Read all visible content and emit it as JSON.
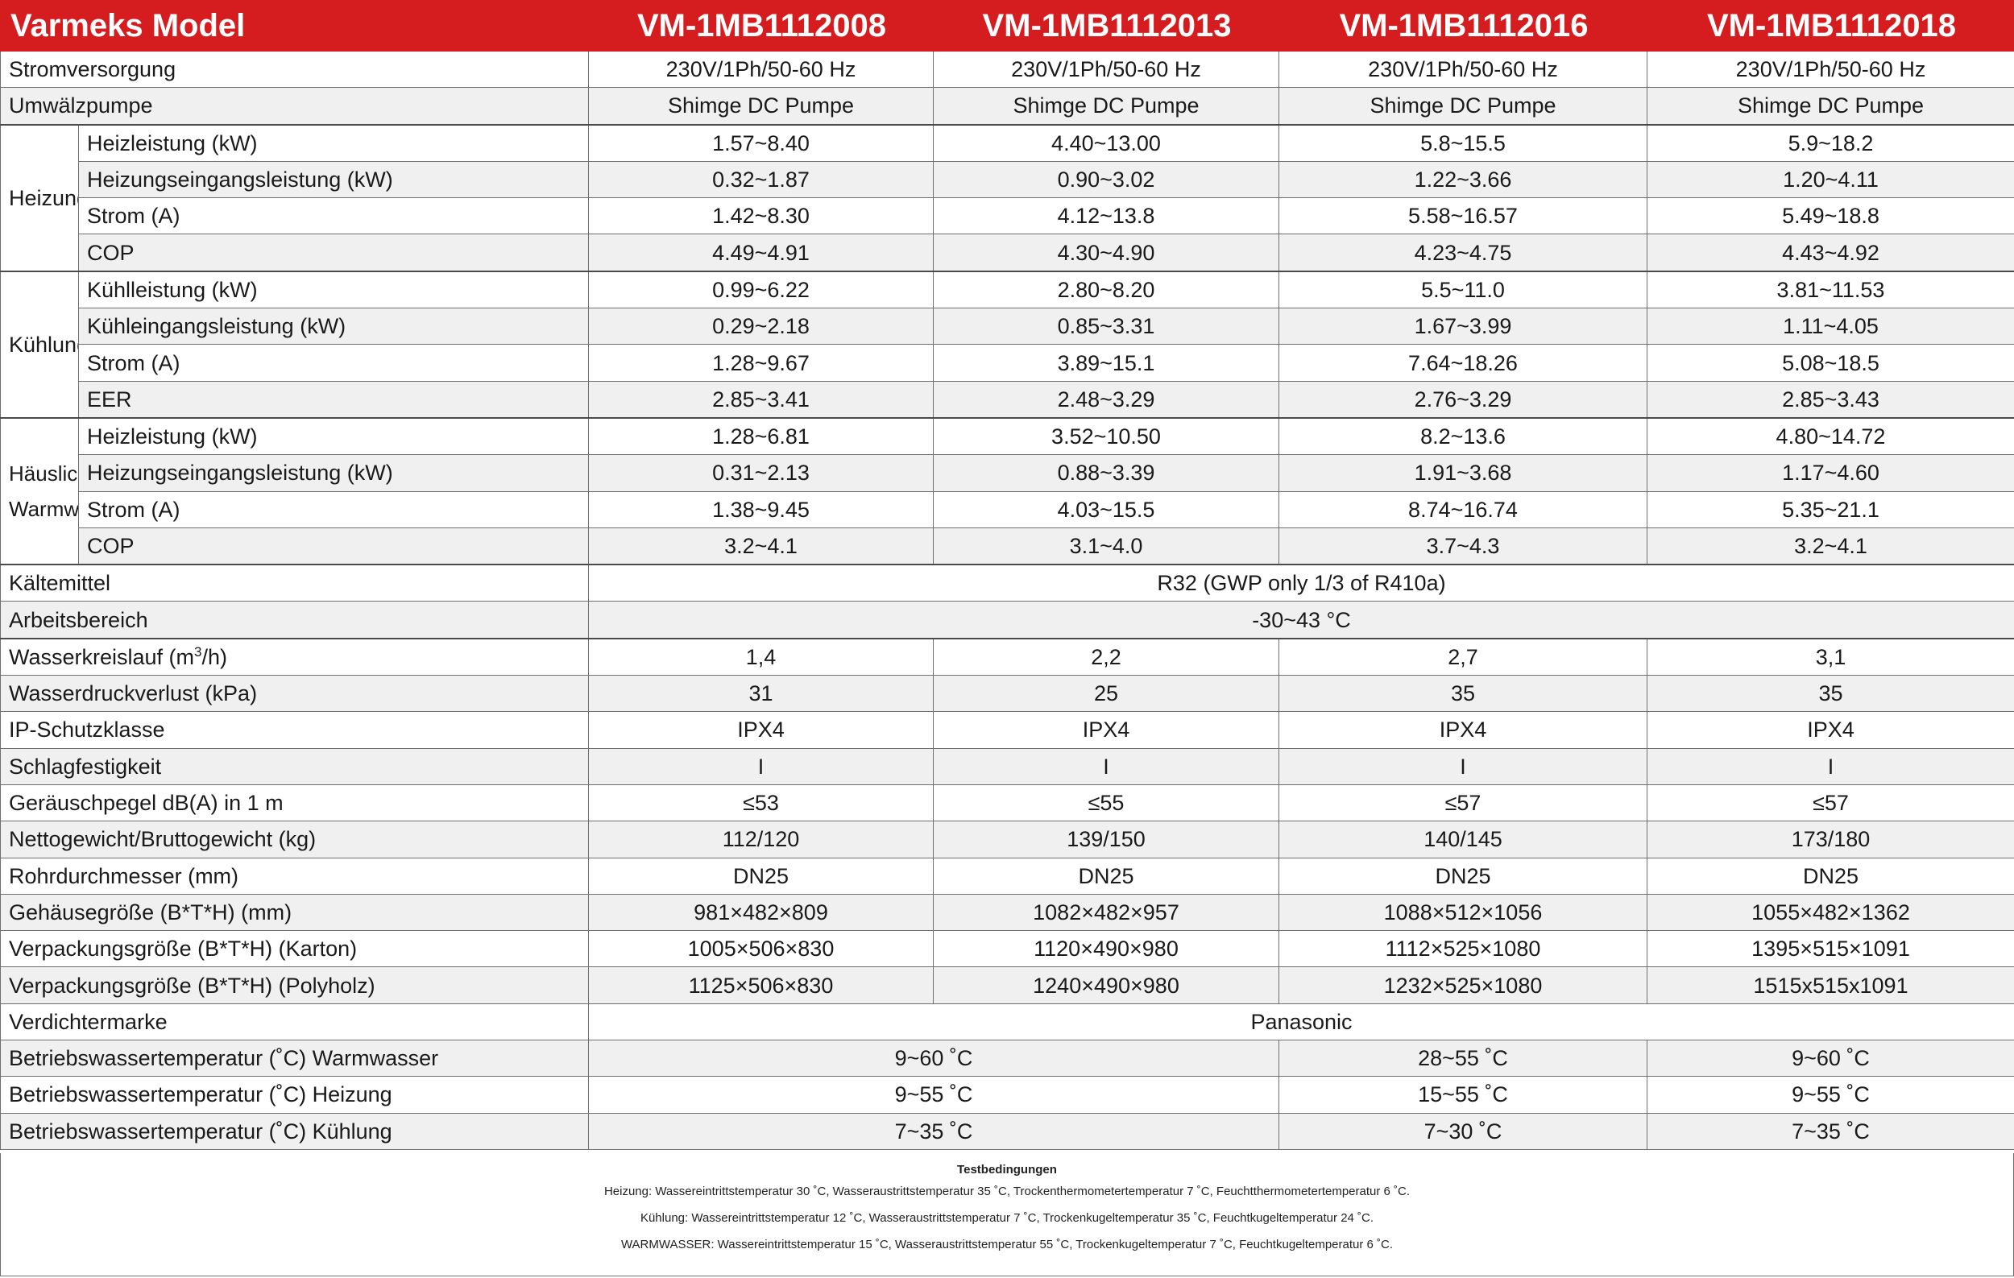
{
  "header": {
    "title": "Varmeks Model",
    "models": [
      "VM-1MB1112008",
      "VM-1MB1112013",
      "VM-1MB1112016",
      "VM-1MB1112018"
    ]
  },
  "rows": {
    "power": {
      "label": "Stromversorgung",
      "values": [
        "230V/1Ph/50-60 Hz",
        "230V/1Ph/50-60 Hz",
        "230V/1Ph/50-60 Hz",
        "230V/1Ph/50-60 Hz"
      ]
    },
    "pump": {
      "label": "Umwälzpumpe",
      "values": [
        "Shimge DC Pumpe",
        "Shimge DC Pumpe",
        "Shimge DC Pumpe",
        "Shimge DC Pumpe"
      ]
    },
    "heating": {
      "group": "Heizung",
      "items": [
        {
          "label": "Heizleistung (kW)",
          "values": [
            "1.57~8.40",
            "4.40~13.00",
            "5.8~15.5",
            "5.9~18.2"
          ]
        },
        {
          "label": "Heizungseingangsleistung (kW)",
          "values": [
            "0.32~1.87",
            "0.90~3.02",
            "1.22~3.66",
            "1.20~4.11"
          ]
        },
        {
          "label": "Strom (A)",
          "values": [
            "1.42~8.30",
            "4.12~13.8",
            "5.58~16.57",
            "5.49~18.8"
          ]
        },
        {
          "label": "COP",
          "values": [
            "4.49~4.91",
            "4.30~4.90",
            "4.23~4.75",
            "4.43~4.92"
          ]
        }
      ]
    },
    "cooling": {
      "group": "Kühlung",
      "items": [
        {
          "label": "Kühlleistung (kW)",
          "values": [
            "0.99~6.22",
            "2.80~8.20",
            "5.5~11.0",
            "3.81~11.53"
          ]
        },
        {
          "label": "Kühleingangsleistung (kW)",
          "values": [
            "0.29~2.18",
            "0.85~3.31",
            "1.67~3.99",
            "1.11~4.05"
          ]
        },
        {
          "label": "Strom (A)",
          "values": [
            "1.28~9.67",
            "3.89~15.1",
            "7.64~18.26",
            "5.08~18.5"
          ]
        },
        {
          "label": "EER",
          "values": [
            "2.85~3.41",
            "2.48~3.29",
            "2.76~3.29",
            "2.85~3.43"
          ]
        }
      ]
    },
    "dhw": {
      "group_line1": "Häusliches",
      "group_line2": "Warmwasser",
      "items": [
        {
          "label": "Heizleistung (kW)",
          "values": [
            "1.28~6.81",
            "3.52~10.50",
            "8.2~13.6",
            "4.80~14.72"
          ]
        },
        {
          "label": "Heizungseingangsleistung (kW)",
          "values": [
            "0.31~2.13",
            "0.88~3.39",
            "1.91~3.68",
            "1.17~4.60"
          ]
        },
        {
          "label": "Strom (A)",
          "values": [
            "1.38~9.45",
            "4.03~15.5",
            "8.74~16.74",
            "5.35~21.1"
          ]
        },
        {
          "label": "COP",
          "values": [
            "3.2~4.1",
            "3.1~4.0",
            "3.7~4.3",
            "3.2~4.1"
          ]
        }
      ]
    },
    "refrigerant": {
      "label": "Kältemittel",
      "value": "R32 (GWP only 1/3 of R410a)"
    },
    "range": {
      "label": "Arbeitsbereich",
      "value": "-30~43 °C"
    },
    "waterflow": {
      "label_pre": "Wasserkreislauf (m",
      "label_sup": "3",
      "label_post": "/h)",
      "values": [
        "1,4",
        "2,2",
        "2,7",
        "3,1"
      ]
    },
    "pressure_loss": {
      "label": "Wasserdruckverlust (kPa)",
      "values": [
        "31",
        "25",
        "35",
        "35"
      ]
    },
    "ip": {
      "label": "IP-Schutzklasse",
      "values": [
        "IPX4",
        "IPX4",
        "IPX4",
        "IPX4"
      ]
    },
    "impact": {
      "label": "Schlagfestigkeit",
      "values": [
        "I",
        "I",
        "I",
        "I"
      ]
    },
    "noise": {
      "label": "Geräuschpegel dB(A) in 1 m",
      "values": [
        "≤53",
        "≤55",
        "≤57",
        "≤57"
      ]
    },
    "weight": {
      "label": "Nettogewicht/Bruttogewicht (kg)",
      "values": [
        "112/120",
        "139/150",
        "140/145",
        "173/180"
      ]
    },
    "pipe": {
      "label": "Rohrdurchmesser (mm)",
      "values": [
        "DN25",
        "DN25",
        "DN25",
        "DN25"
      ]
    },
    "housing": {
      "label": "Gehäusegröße (B*T*H) (mm)",
      "values": [
        "981×482×809",
        "1082×482×957",
        "1088×512×1056",
        "1055×482×1362"
      ]
    },
    "pack_carton": {
      "label": "Verpackungsgröße (B*T*H) (Karton)",
      "values": [
        "1005×506×830",
        "1120×490×980",
        "1112×525×1080",
        "1395×515×1091"
      ]
    },
    "pack_wood": {
      "label": "Verpackungsgröße (B*T*H) (Polyholz)",
      "values": [
        "1125×506×830",
        "1240×490×980",
        "1232×525×1080",
        "1515x515x1091"
      ]
    },
    "compressor": {
      "label": "Verdichtermarke",
      "value": "Panasonic"
    },
    "temp_dhw": {
      "label": "Betriebswassertemperatur (˚C) Warmwasser",
      "v12": "9~60 ˚C",
      "v3": "28~55 ˚C",
      "v4": "9~60 ˚C"
    },
    "temp_heat": {
      "label": "Betriebswassertemperatur (˚C) Heizung",
      "v12": "9~55 ˚C",
      "v3": "15~55 ˚C",
      "v4": "9~55 ˚C"
    },
    "temp_cool": {
      "label": "Betriebswassertemperatur (˚C) Kühlung",
      "v12": "7~35 ˚C",
      "v3": "7~30 ˚C",
      "v4": "7~35 ˚C"
    }
  },
  "notes": {
    "title": "Testbedingungen",
    "heating": "Heizung: Wassereintrittstemperatur 30 ˚C, Wasseraustrittstemperatur 35 ˚C, Trockenthermometertemperatur 7 ˚C, Feuchtthermometertemperatur 6 ˚C.",
    "cooling": "Kühlung: Wassereintrittstemperatur 12 ˚C, Wasseraustrittstemperatur 7 ˚C, Trockenkugeltemperatur 35 ˚C, Feuchtkugeltemperatur 24 ˚C.",
    "dhw": "WARMWASSER: Wassereintrittstemperatur 15 ˚C, Wasseraustrittstemperatur 55 ˚C, Trockenkugeltemperatur 7 ˚C, Feuchtkugeltemperatur 6 ˚C."
  }
}
